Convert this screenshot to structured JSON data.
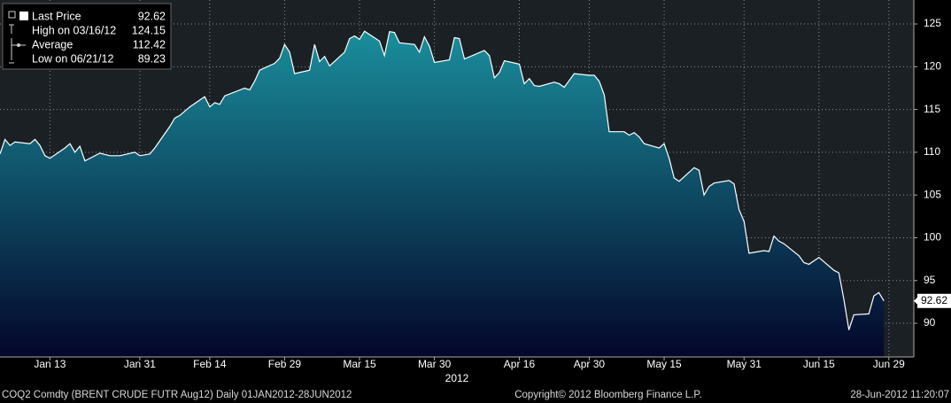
{
  "chart_data": {
    "type": "area",
    "x": [
      "2012-01-03",
      "2012-01-04",
      "2012-01-05",
      "2012-01-06",
      "2012-01-09",
      "2012-01-10",
      "2012-01-11",
      "2012-01-12",
      "2012-01-13",
      "2012-01-16",
      "2012-01-17",
      "2012-01-18",
      "2012-01-19",
      "2012-01-20",
      "2012-01-23",
      "2012-01-25",
      "2012-01-27",
      "2012-01-30",
      "2012-01-31",
      "2012-02-02",
      "2012-02-03",
      "2012-02-06",
      "2012-02-07",
      "2012-02-08",
      "2012-02-10",
      "2012-02-13",
      "2012-02-14",
      "2012-02-15",
      "2012-02-16",
      "2012-02-17",
      "2012-02-21",
      "2012-02-22",
      "2012-02-23",
      "2012-02-24",
      "2012-02-27",
      "2012-02-28",
      "2012-02-29",
      "2012-03-01",
      "2012-03-02",
      "2012-03-05",
      "2012-03-06",
      "2012-03-07",
      "2012-03-08",
      "2012-03-09",
      "2012-03-12",
      "2012-03-13",
      "2012-03-14",
      "2012-03-15",
      "2012-03-16",
      "2012-03-19",
      "2012-03-20",
      "2012-03-21",
      "2012-03-22",
      "2012-03-23",
      "2012-03-26",
      "2012-03-27",
      "2012-03-28",
      "2012-03-29",
      "2012-03-30",
      "2012-04-02",
      "2012-04-03",
      "2012-04-04",
      "2012-04-05",
      "2012-04-09",
      "2012-04-10",
      "2012-04-11",
      "2012-04-12",
      "2012-04-13",
      "2012-04-16",
      "2012-04-17",
      "2012-04-18",
      "2012-04-19",
      "2012-04-20",
      "2012-04-23",
      "2012-04-24",
      "2012-04-25",
      "2012-04-26",
      "2012-04-27",
      "2012-04-30",
      "2012-05-01",
      "2012-05-02",
      "2012-05-03",
      "2012-05-04",
      "2012-05-07",
      "2012-05-08",
      "2012-05-09",
      "2012-05-10",
      "2012-05-11",
      "2012-05-14",
      "2012-05-15",
      "2012-05-16",
      "2012-05-17",
      "2012-05-18",
      "2012-05-21",
      "2012-05-22",
      "2012-05-23",
      "2012-05-24",
      "2012-05-25",
      "2012-05-28",
      "2012-05-29",
      "2012-05-30",
      "2012-05-31",
      "2012-06-01",
      "2012-06-04",
      "2012-06-05",
      "2012-06-06",
      "2012-06-07",
      "2012-06-08",
      "2012-06-11",
      "2012-06-12",
      "2012-06-13",
      "2012-06-14",
      "2012-06-15",
      "2012-06-18",
      "2012-06-19",
      "2012-06-20",
      "2012-06-21",
      "2012-06-22",
      "2012-06-25",
      "2012-06-26",
      "2012-06-27",
      "2012-06-28"
    ],
    "series": [
      {
        "name": "Last Price",
        "color": "#ffffff",
        "fill_top": "#1a8e9c",
        "fill_bottom": "#03062a",
        "values": [
          109.8,
          111.5,
          110.8,
          111.2,
          111.0,
          111.5,
          110.8,
          109.6,
          109.3,
          110.5,
          111.0,
          110.0,
          110.7,
          109.0,
          109.9,
          109.6,
          109.6,
          110.0,
          109.6,
          109.8,
          110.5,
          113.0,
          114.0,
          114.3,
          115.3,
          116.5,
          115.3,
          115.8,
          115.6,
          116.6,
          117.5,
          117.3,
          118.3,
          119.6,
          120.4,
          121.0,
          122.6,
          121.7,
          119.2,
          119.6,
          122.6,
          120.6,
          121.2,
          120.1,
          121.7,
          123.3,
          123.6,
          123.2,
          124.15,
          123.0,
          121.3,
          124.1,
          124.0,
          122.8,
          122.6,
          121.7,
          123.5,
          122.4,
          120.5,
          120.8,
          123.4,
          123.3,
          120.9,
          121.9,
          121.3,
          118.7,
          119.3,
          120.7,
          120.3,
          118.0,
          118.6,
          117.8,
          117.7,
          118.2,
          118.0,
          117.6,
          118.4,
          119.2,
          119.0,
          119.0,
          118.3,
          116.7,
          112.4,
          112.4,
          112.0,
          112.3,
          111.8,
          111.0,
          110.5,
          111.0,
          109.3,
          107.0,
          106.6,
          108.2,
          107.9,
          105.0,
          106.0,
          106.4,
          106.7,
          106.3,
          103.3,
          101.9,
          98.2,
          98.5,
          98.4,
          100.2,
          99.6,
          99.3,
          97.9,
          97.1,
          96.9,
          97.3,
          97.7,
          96.2,
          95.9,
          92.8,
          89.23,
          91.0,
          91.1,
          93.2,
          93.6,
          92.62
        ]
      }
    ],
    "stats": [
      {
        "label": "High on 03/16/12",
        "value": 124.15
      },
      {
        "label": "Average",
        "value": 112.42
      },
      {
        "label": "Low on 06/21/12",
        "value": 89.23
      }
    ],
    "xlim": [
      "2012-01-03",
      "2012-07-04"
    ],
    "xticks": [
      {
        "value": "2012-01-13",
        "label": "Jan 13"
      },
      {
        "value": "2012-01-31",
        "label": "Jan 31"
      },
      {
        "value": "2012-02-14",
        "label": "Feb 14"
      },
      {
        "value": "2012-02-29",
        "label": "Feb 29"
      },
      {
        "value": "2012-03-15",
        "label": "Mar 15"
      },
      {
        "value": "2012-03-30",
        "label": "Mar 30"
      },
      {
        "value": "2012-04-16",
        "label": "Apr 16"
      },
      {
        "value": "2012-04-30",
        "label": "Apr 30"
      },
      {
        "value": "2012-05-15",
        "label": "May 15"
      },
      {
        "value": "2012-05-31",
        "label": "May 31"
      },
      {
        "value": "2012-06-15",
        "label": "Jun 15"
      },
      {
        "value": "2012-06-29",
        "label": "Jun 29"
      }
    ],
    "year_label": "2012",
    "ylim": [
      86.07,
      127.8
    ],
    "yticks": [
      90,
      95,
      100,
      105,
      110,
      115,
      120,
      125
    ],
    "grid": true,
    "footer": {
      "left": "COQ2 Comdty (BRENT CRUDE FUTR  Aug12)  Daily 01JAN2012-28JUN2012",
      "center": "Copyright© 2012 Bloomberg Finance L.P.",
      "right": "28-Jun-2012 11:20:07"
    }
  }
}
